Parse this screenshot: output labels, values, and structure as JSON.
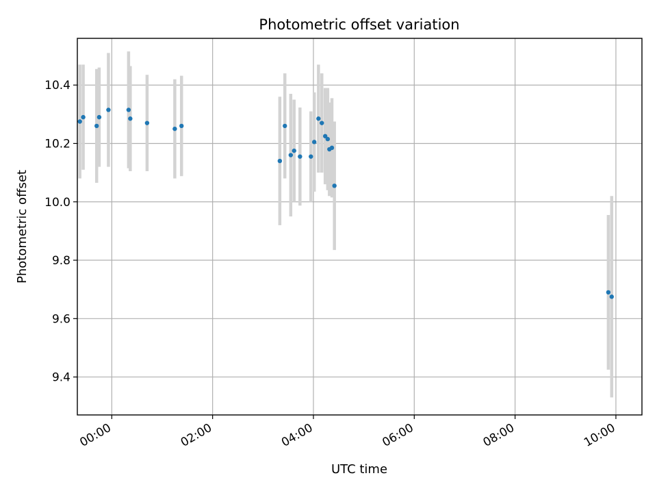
{
  "chart_data": {
    "type": "scatter",
    "title": "Photometric offset variation",
    "xlabel": "UTC time",
    "ylabel": "Photometric offset",
    "x_format": "HH:MM",
    "xlim": [
      "2024-01-01T23:19",
      "2024-01-02T10:31"
    ],
    "ylim": [
      9.27,
      10.56
    ],
    "x_ticks": [
      {
        "x": "2024-01-02T00:00",
        "label": "00:00"
      },
      {
        "x": "2024-01-02T02:00",
        "label": "02:00"
      },
      {
        "x": "2024-01-02T04:00",
        "label": "04:00"
      },
      {
        "x": "2024-01-02T06:00",
        "label": "06:00"
      },
      {
        "x": "2024-01-02T08:00",
        "label": "08:00"
      },
      {
        "x": "2024-01-02T10:00",
        "label": "10:00"
      }
    ],
    "y_ticks": [
      {
        "y": 9.4,
        "label": "9.4"
      },
      {
        "y": 9.6,
        "label": "9.6"
      },
      {
        "y": 9.8,
        "label": "9.8"
      },
      {
        "y": 10.0,
        "label": "10.0"
      },
      {
        "y": 10.2,
        "label": "10.2"
      },
      {
        "y": 10.4,
        "label": "10.4"
      }
    ],
    "grid": true,
    "colors": {
      "point": "#1f77b4",
      "errorbar": "#d3d3d3",
      "grid": "#b0b0b0"
    },
    "points": [
      {
        "x": "2024-01-01T23:22",
        "y": 10.275,
        "err": 0.195
      },
      {
        "x": "2024-01-01T23:26",
        "y": 10.29,
        "err": 0.18
      },
      {
        "x": "2024-01-01T23:42",
        "y": 10.26,
        "err": 0.195
      },
      {
        "x": "2024-01-01T23:45",
        "y": 10.29,
        "err": 0.17
      },
      {
        "x": "2024-01-01T23:56",
        "y": 10.315,
        "err": 0.195
      },
      {
        "x": "2024-01-02T00:20",
        "y": 10.315,
        "err": 0.2
      },
      {
        "x": "2024-01-02T00:22",
        "y": 10.285,
        "err": 0.18
      },
      {
        "x": "2024-01-02T00:42",
        "y": 10.27,
        "err": 0.165
      },
      {
        "x": "2024-01-02T01:15",
        "y": 10.25,
        "err": 0.17
      },
      {
        "x": "2024-01-02T01:23",
        "y": 10.26,
        "err": 0.172
      },
      {
        "x": "2024-01-02T03:20",
        "y": 10.14,
        "err": 0.22
      },
      {
        "x": "2024-01-02T03:26",
        "y": 10.26,
        "err": 0.18
      },
      {
        "x": "2024-01-02T03:33",
        "y": 10.16,
        "err": 0.21
      },
      {
        "x": "2024-01-02T03:37",
        "y": 10.175,
        "err": 0.175
      },
      {
        "x": "2024-01-02T03:44",
        "y": 10.155,
        "err": 0.168
      },
      {
        "x": "2024-01-02T03:57",
        "y": 10.155,
        "err": 0.155
      },
      {
        "x": "2024-01-02T04:01",
        "y": 10.205,
        "err": 0.17
      },
      {
        "x": "2024-01-02T04:06",
        "y": 10.285,
        "err": 0.185
      },
      {
        "x": "2024-01-02T04:10",
        "y": 10.27,
        "err": 0.17
      },
      {
        "x": "2024-01-02T04:14",
        "y": 10.225,
        "err": 0.165
      },
      {
        "x": "2024-01-02T04:17",
        "y": 10.215,
        "err": 0.175
      },
      {
        "x": "2024-01-02T04:19",
        "y": 10.18,
        "err": 0.16
      },
      {
        "x": "2024-01-02T04:22",
        "y": 10.185,
        "err": 0.17
      },
      {
        "x": "2024-01-02T04:25",
        "y": 10.055,
        "err": 0.22
      },
      {
        "x": "2024-01-02T09:51",
        "y": 9.69,
        "err": 0.265
      },
      {
        "x": "2024-01-02T09:55",
        "y": 9.675,
        "err": 0.345
      }
    ]
  }
}
